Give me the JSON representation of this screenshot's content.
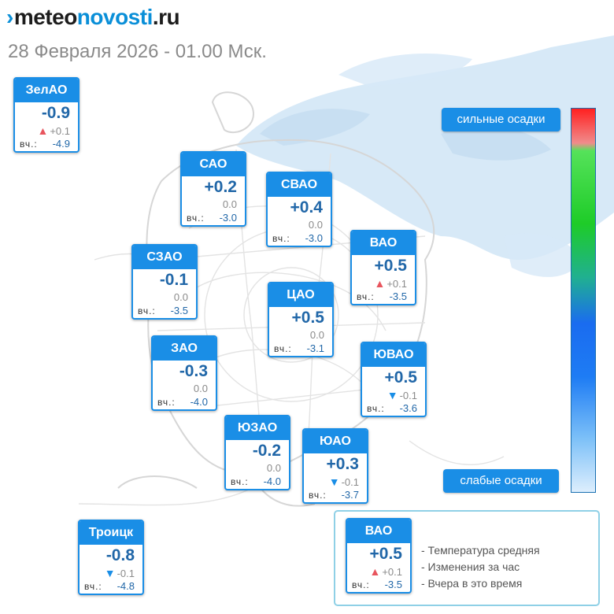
{
  "header": {
    "logo_mark": "›",
    "logo_part1": "meteo",
    "logo_part2": "novosti",
    "logo_part3": ".ru",
    "date": "28 Февраля 2026 - 01.00 Мск."
  },
  "colors": {
    "accent": "#1a8ee6",
    "temperature_text": "#2167a8",
    "rise_arrow": "#e8555e",
    "fall_arrow": "#1a8ee6",
    "precipitation_cloud": "#d7e9f7"
  },
  "icons": {
    "rise": "triangle-up-icon",
    "fall": "triangle-down-icon"
  },
  "districts": [
    {
      "id": "zelao",
      "name": "ЗелАО",
      "temp": "-0.9",
      "trend": "up",
      "change": "+0.1",
      "yesterday_label": "вч.:",
      "yesterday": "-4.9"
    },
    {
      "id": "sao",
      "name": "САО",
      "temp": "+0.2",
      "trend": "none",
      "change": "0.0",
      "yesterday_label": "вч.:",
      "yesterday": "-3.0"
    },
    {
      "id": "svao",
      "name": "СВАО",
      "temp": "+0.4",
      "trend": "none",
      "change": "0.0",
      "yesterday_label": "вч.:",
      "yesterday": "-3.0"
    },
    {
      "id": "szao",
      "name": "СЗАО",
      "temp": "-0.1",
      "trend": "none",
      "change": "0.0",
      "yesterday_label": "вч.:",
      "yesterday": "-3.5"
    },
    {
      "id": "vao",
      "name": "ВАО",
      "temp": "+0.5",
      "trend": "up",
      "change": "+0.1",
      "yesterday_label": "вч.:",
      "yesterday": "-3.5"
    },
    {
      "id": "cao",
      "name": "ЦАО",
      "temp": "+0.5",
      "trend": "none",
      "change": "0.0",
      "yesterday_label": "вч.:",
      "yesterday": "-3.1"
    },
    {
      "id": "zao",
      "name": "ЗАО",
      "temp": "-0.3",
      "trend": "none",
      "change": "0.0",
      "yesterday_label": "вч.:",
      "yesterday": "-4.0"
    },
    {
      "id": "yuvao",
      "name": "ЮВАО",
      "temp": "+0.5",
      "trend": "down",
      "change": "-0.1",
      "yesterday_label": "вч.:",
      "yesterday": "-3.6"
    },
    {
      "id": "yuzao",
      "name": "ЮЗАО",
      "temp": "-0.2",
      "trend": "none",
      "change": "0.0",
      "yesterday_label": "вч.:",
      "yesterday": "-4.0"
    },
    {
      "id": "yuao",
      "name": "ЮАО",
      "temp": "+0.3",
      "trend": "down",
      "change": "-0.1",
      "yesterday_label": "вч.:",
      "yesterday": "-3.7"
    },
    {
      "id": "troitsk",
      "name": "Троицк",
      "temp": "-0.8",
      "trend": "down",
      "change": "-0.1",
      "yesterday_label": "вч.:",
      "yesterday": "-4.8"
    }
  ],
  "precipitation_scale": {
    "high_label": "сильные осадки",
    "low_label": "слабые осадки"
  },
  "legend": {
    "example": {
      "name": "ВАО",
      "temp": "+0.5",
      "trend": "up",
      "change": "+0.1",
      "yesterday_label": "вч.:",
      "yesterday": "-3.5"
    },
    "line1": "- Температура средняя",
    "line2": "- Изменения за час",
    "line3": "- Вчера в это время"
  }
}
